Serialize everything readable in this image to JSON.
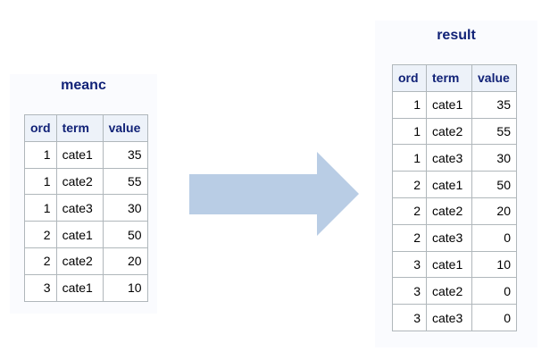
{
  "left_table": {
    "title": "meanc",
    "headers": [
      "ord",
      "term",
      "value"
    ],
    "rows": [
      [
        "1",
        "cate1",
        "35"
      ],
      [
        "1",
        "cate2",
        "55"
      ],
      [
        "1",
        "cate3",
        "30"
      ],
      [
        "2",
        "cate1",
        "50"
      ],
      [
        "2",
        "cate2",
        "20"
      ],
      [
        "3",
        "cate1",
        "10"
      ]
    ]
  },
  "right_table": {
    "title": "result",
    "headers": [
      "ord",
      "term",
      "value"
    ],
    "rows": [
      [
        "1",
        "cate1",
        "35"
      ],
      [
        "1",
        "cate2",
        "55"
      ],
      [
        "1",
        "cate3",
        "30"
      ],
      [
        "2",
        "cate1",
        "50"
      ],
      [
        "2",
        "cate2",
        "20"
      ],
      [
        "2",
        "cate3",
        "0"
      ],
      [
        "3",
        "cate1",
        "10"
      ],
      [
        "3",
        "cate2",
        "0"
      ],
      [
        "3",
        "cate3",
        "0"
      ]
    ]
  },
  "arrow": {
    "icon": "right-arrow-icon",
    "color": "#b9cde5"
  },
  "colors": {
    "title": "#112277",
    "header_bg": "#edf2f9",
    "panel_bg": "#fafbfe",
    "grid": "#b0b7bb"
  }
}
